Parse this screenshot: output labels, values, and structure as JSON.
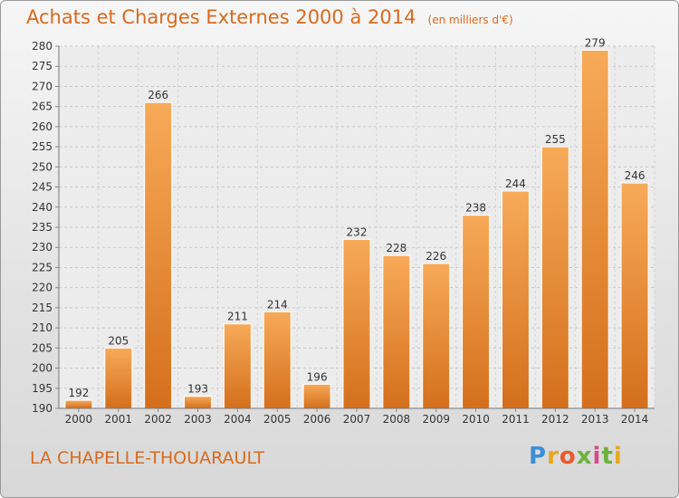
{
  "header": {
    "title": "Achats et Charges Externes 2000 à 2014",
    "unit": "(en milliers d'€)"
  },
  "footer": {
    "town": "LA CHAPELLE-THOUARAULT",
    "logo": "Proxiti"
  },
  "colors": {
    "accent": "#d96a1c",
    "bar_light": "#f5a552",
    "bar_dark": "#d8741f"
  },
  "chart_data": {
    "type": "bar",
    "title": "Achats et Charges Externes 2000 à 2014",
    "subtitle": "(en milliers d'€)",
    "xlabel": "",
    "ylabel": "",
    "categories": [
      "2000",
      "2001",
      "2002",
      "2003",
      "2004",
      "2005",
      "2006",
      "2007",
      "2008",
      "2009",
      "2010",
      "2011",
      "2012",
      "2013",
      "2014"
    ],
    "values": [
      192,
      205,
      266,
      193,
      211,
      214,
      196,
      232,
      228,
      226,
      238,
      244,
      255,
      279,
      246
    ],
    "ylim": [
      190,
      280
    ],
    "yticks": [
      190,
      195,
      200,
      205,
      210,
      215,
      220,
      225,
      230,
      235,
      240,
      245,
      250,
      255,
      260,
      265,
      270,
      275,
      280
    ],
    "grid": true
  }
}
